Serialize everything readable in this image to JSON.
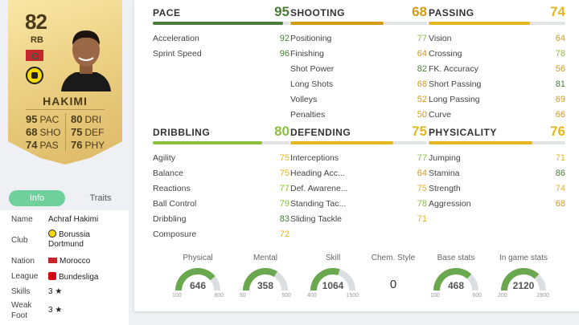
{
  "card": {
    "rating": "82",
    "position": "RB",
    "name": "HAKIMI",
    "stats": [
      {
        "v": "95",
        "k": "PAC"
      },
      {
        "v": "80",
        "k": "DRI"
      },
      {
        "v": "68",
        "k": "SHO"
      },
      {
        "v": "75",
        "k": "DEF"
      },
      {
        "v": "74",
        "k": "PAS"
      },
      {
        "v": "76",
        "k": "PHY"
      }
    ]
  },
  "tabs": {
    "info": "Info",
    "traits": "Traits"
  },
  "info": {
    "name_k": "Name",
    "name_v": "Achraf Hakimi",
    "club_k": "Club",
    "club_v1": "Borussia",
    "club_v2": "Dortmund",
    "nation_k": "Nation",
    "nation_v": "Morocco",
    "league_k": "League",
    "league_v": "Bundesliga",
    "skills_k": "Skills",
    "skills_v": "3 ★",
    "weak_k1": "Weak",
    "weak_k2": "Foot",
    "weak_v": "3 ★"
  },
  "categories": [
    {
      "title": "PACE",
      "value": "95",
      "color": "#4a7c3a",
      "pct": 0.95,
      "stats": [
        {
          "label": "Acceleration",
          "value": "92",
          "color": "#4a7c3a"
        },
        {
          "label": "Sprint Speed",
          "value": "96",
          "color": "#4a7c3a"
        }
      ]
    },
    {
      "title": "SHOOTING",
      "value": "68",
      "color": "#d39a18",
      "pct": 0.68,
      "stats": [
        {
          "label": "Positioning",
          "value": "77",
          "color": "#8bbf3c"
        },
        {
          "label": "Finishing",
          "value": "64",
          "color": "#d39a18"
        },
        {
          "label": "Shot Power",
          "value": "82",
          "color": "#4a7c3a"
        },
        {
          "label": "Long Shots",
          "value": "68",
          "color": "#d39a18"
        },
        {
          "label": "Volleys",
          "value": "52",
          "color": "#d39a18"
        },
        {
          "label": "Penalties",
          "value": "50",
          "color": "#d39a18"
        }
      ]
    },
    {
      "title": "PASSING",
      "value": "74",
      "color": "#e4b620",
      "pct": 0.74,
      "stats": [
        {
          "label": "Vision",
          "value": "64",
          "color": "#d39a18"
        },
        {
          "label": "Crossing",
          "value": "78",
          "color": "#8bbf3c"
        },
        {
          "label": "FK. Accuracy",
          "value": "56",
          "color": "#d39a18"
        },
        {
          "label": "Short Passing",
          "value": "81",
          "color": "#4a7c3a"
        },
        {
          "label": "Long Passing",
          "value": "69",
          "color": "#d39a18"
        },
        {
          "label": "Curve",
          "value": "66",
          "color": "#d39a18"
        }
      ]
    },
    {
      "title": "DRIBBLING",
      "value": "80",
      "color": "#8bbf3c",
      "pct": 0.8,
      "stats": [
        {
          "label": "Agility",
          "value": "75",
          "color": "#e4b620"
        },
        {
          "label": "Balance",
          "value": "75",
          "color": "#e4b620"
        },
        {
          "label": "Reactions",
          "value": "77",
          "color": "#8bbf3c"
        },
        {
          "label": "Ball Control",
          "value": "79",
          "color": "#8bbf3c"
        },
        {
          "label": "Dribbling",
          "value": "83",
          "color": "#4a7c3a"
        },
        {
          "label": "Composure",
          "value": "72",
          "color": "#e4b620"
        }
      ]
    },
    {
      "title": "DEFENDING",
      "value": "75",
      "color": "#e4b620",
      "pct": 0.75,
      "stats": [
        {
          "label": "Interceptions",
          "value": "77",
          "color": "#8bbf3c"
        },
        {
          "label": "Heading Acc...",
          "value": "64",
          "color": "#d39a18"
        },
        {
          "label": "Def. Awarene...",
          "value": "75",
          "color": "#e4b620"
        },
        {
          "label": "Standing Tac...",
          "value": "78",
          "color": "#8bbf3c"
        },
        {
          "label": "Sliding Tackle",
          "value": "71",
          "color": "#e4b620"
        }
      ]
    },
    {
      "title": "PHYSICALITY",
      "value": "76",
      "color": "#e4b620",
      "pct": 0.76,
      "stats": [
        {
          "label": "Jumping",
          "value": "71",
          "color": "#e4b620"
        },
        {
          "label": "Stamina",
          "value": "86",
          "color": "#4a7c3a"
        },
        {
          "label": "Strength",
          "value": "74",
          "color": "#e4b620"
        },
        {
          "label": "Aggression",
          "value": "68",
          "color": "#d39a18"
        }
      ]
    }
  ],
  "gauges": [
    {
      "label": "Physical",
      "value": "646",
      "min": "100",
      "max": "800",
      "frac": 0.78
    },
    {
      "label": "Mental",
      "value": "358",
      "min": "50",
      "max": "500",
      "frac": 0.68
    },
    {
      "label": "Skill",
      "value": "1064",
      "min": "400",
      "max": "1500",
      "frac": 0.6
    },
    {
      "label": "Base stats",
      "value": "468",
      "min": "100",
      "max": "600",
      "frac": 0.74
    },
    {
      "label": "In game stats",
      "value": "2120",
      "min": "200",
      "max": "2800",
      "frac": 0.74
    }
  ],
  "chem": {
    "label": "Chem. Style",
    "value": "0"
  },
  "colors": {
    "gauge": "#6aa84f",
    "track": "#dcdfe2",
    "tab_active": "#6fd09c"
  }
}
